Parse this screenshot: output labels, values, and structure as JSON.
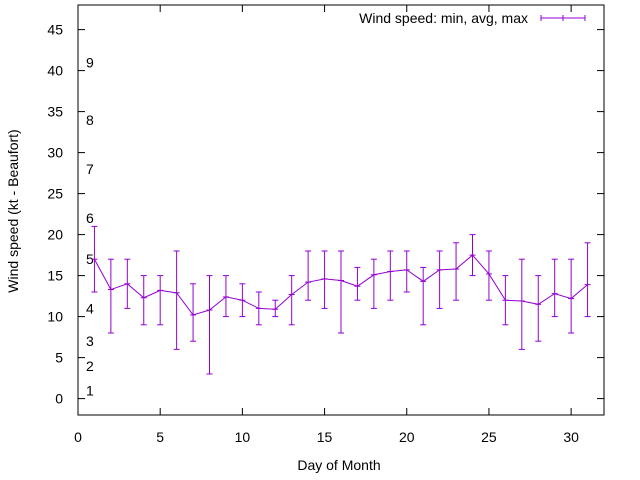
{
  "chart_data": {
    "type": "line",
    "xlabel": "Day of Month",
    "ylabel": "Wind speed (kt - Beaufort)",
    "xlim": [
      0,
      32
    ],
    "ylim": [
      -2,
      48
    ],
    "xticks": [
      0,
      5,
      10,
      15,
      20,
      25,
      30
    ],
    "yticks": [
      0,
      5,
      10,
      15,
      20,
      25,
      30,
      35,
      40,
      45
    ],
    "grid": false,
    "legend_position": "top-right",
    "series": [
      {
        "name": "Wind speed: min, avg, max",
        "color": "#9400d3",
        "style": "errorbars",
        "x": [
          1,
          2,
          3,
          4,
          5,
          6,
          7,
          8,
          9,
          10,
          11,
          12,
          13,
          14,
          15,
          16,
          17,
          18,
          19,
          20,
          21,
          22,
          23,
          24,
          25,
          26,
          27,
          28,
          29,
          30,
          31
        ],
        "min": [
          13,
          8,
          11,
          9,
          9,
          6,
          7,
          3,
          10,
          10,
          9,
          10,
          9,
          12,
          11,
          8,
          12,
          11,
          12,
          13,
          9,
          11,
          12,
          15,
          12,
          9,
          6,
          7,
          10,
          8,
          10
        ],
        "avg": [
          17,
          13.3,
          14,
          12.3,
          13.2,
          12.9,
          10.2,
          10.8,
          12.4,
          12,
          11,
          10.9,
          12.7,
          14.2,
          14.6,
          14.4,
          13.7,
          15.1,
          15.5,
          15.7,
          14.3,
          15.7,
          15.8,
          17.5,
          15.2,
          12,
          11.9,
          11.5,
          12.8,
          12.2,
          13.9
        ],
        "max": [
          21,
          17,
          17,
          15,
          15,
          18,
          14,
          15,
          15,
          14,
          13,
          12,
          15,
          18,
          18,
          18,
          16,
          17,
          18,
          18,
          16,
          18,
          19,
          20,
          18,
          15,
          17,
          15,
          17,
          17,
          19
        ]
      }
    ],
    "beaufort_labels": [
      {
        "label": "1",
        "y": 1
      },
      {
        "label": "2",
        "y": 4
      },
      {
        "label": "3",
        "y": 7
      },
      {
        "label": "4",
        "y": 11
      },
      {
        "label": "5",
        "y": 17
      },
      {
        "label": "6",
        "y": 22
      },
      {
        "label": "7",
        "y": 28
      },
      {
        "label": "8",
        "y": 34
      },
      {
        "label": "9",
        "y": 41
      }
    ]
  }
}
